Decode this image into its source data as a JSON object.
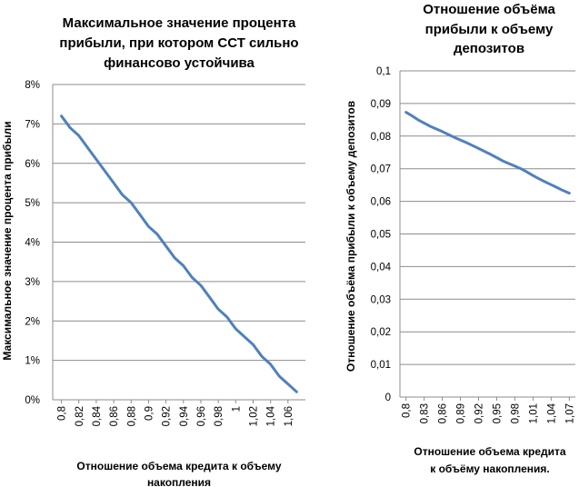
{
  "chart_data": [
    {
      "type": "line",
      "title_lines": [
        "Максимальное значение процента",
        "прибыли, при котором ССТ сильно",
        "финансово устойчива"
      ],
      "xlabel_lines": [
        "Отношение объема кредита к объему",
        "накопления"
      ],
      "ylabel": "Максимальное значение процента прибыли",
      "y_ticks": [
        "0%",
        "1%",
        "2%",
        "3%",
        "4%",
        "5%",
        "6%",
        "7%",
        "8%"
      ],
      "ylim": [
        0,
        0.08
      ],
      "x_ticks": [
        "0,8",
        "0,82",
        "0,84",
        "0,86",
        "0,88",
        "0,9",
        "0,92",
        "0,94",
        "0,96",
        "0,98",
        "1",
        "1,02",
        "1,04",
        "1,06"
      ],
      "xlim": [
        0.79,
        1.08
      ],
      "grid": true,
      "series": [
        {
          "color": "#4f81bd",
          "x": [
            0.8,
            0.81,
            0.82,
            0.83,
            0.84,
            0.85,
            0.86,
            0.87,
            0.88,
            0.89,
            0.9,
            0.91,
            0.92,
            0.93,
            0.94,
            0.95,
            0.96,
            0.97,
            0.98,
            0.99,
            1.0,
            1.01,
            1.02,
            1.03,
            1.04,
            1.05,
            1.06,
            1.07
          ],
          "values": [
            0.072,
            0.069,
            0.067,
            0.064,
            0.061,
            0.058,
            0.055,
            0.052,
            0.05,
            0.047,
            0.044,
            0.042,
            0.039,
            0.036,
            0.034,
            0.031,
            0.029,
            0.026,
            0.023,
            0.021,
            0.018,
            0.016,
            0.014,
            0.011,
            0.009,
            0.006,
            0.004,
            0.002
          ]
        }
      ]
    },
    {
      "type": "line",
      "title_lines": [
        "Отношение объёма",
        "прибыли к объему",
        "депозитов"
      ],
      "xlabel_lines": [
        "Отношение объема кредита",
        "к объёму накопления."
      ],
      "ylabel": "Отношение объёма прибыли к объему депозитов",
      "y_ticks": [
        "0",
        "0,01",
        "0,02",
        "0,03",
        "0,04",
        "0,05",
        "0,06",
        "0,07",
        "0,08",
        "0,09",
        "0,1"
      ],
      "ylim": [
        0,
        0.1
      ],
      "x_ticks": [
        "0,8",
        "0,83",
        "0,86",
        "0,89",
        "0,92",
        "0,95",
        "0,98",
        "1,01",
        "1,04",
        "1,07"
      ],
      "xlim": [
        0.79,
        1.08
      ],
      "grid": true,
      "series": [
        {
          "color": "#4f81bd",
          "x": [
            0.8,
            0.81,
            0.82,
            0.83,
            0.84,
            0.85,
            0.86,
            0.87,
            0.88,
            0.89,
            0.9,
            0.91,
            0.92,
            0.93,
            0.94,
            0.95,
            0.96,
            0.97,
            0.98,
            0.99,
            1.0,
            1.01,
            1.02,
            1.03,
            1.04,
            1.05,
            1.06,
            1.07
          ],
          "values": [
            0.0873,
            0.0862,
            0.085,
            0.084,
            0.083,
            0.0822,
            0.0814,
            0.0805,
            0.0796,
            0.0788,
            0.078,
            0.0771,
            0.0762,
            0.0753,
            0.0744,
            0.0734,
            0.0724,
            0.0716,
            0.0708,
            0.07,
            0.069,
            0.0679,
            0.0669,
            0.066,
            0.0651,
            0.0642,
            0.0633,
            0.0625
          ]
        }
      ]
    }
  ]
}
